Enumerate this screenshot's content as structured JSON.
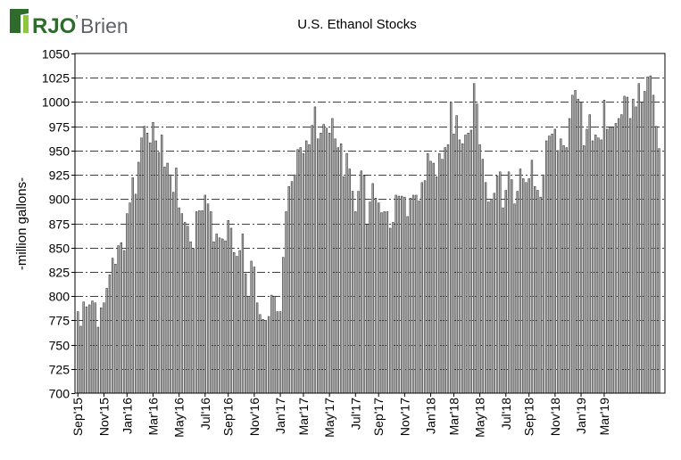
{
  "brand": {
    "name_rjo": "RJO",
    "name_apostrophe": "’",
    "name_brien": "Brien",
    "logo_icon": "rjo-brien-logo-icon",
    "colors": {
      "dark_green": "#2e6b2c",
      "light_green": "#8dc63f",
      "text": "#5f6368"
    }
  },
  "chart_data": {
    "type": "bar",
    "title": "U.S. Ethanol Stocks",
    "ylabel": "-million gallons-",
    "xlabel": "",
    "ylim": [
      700,
      1050
    ],
    "yticks": [
      700,
      725,
      750,
      775,
      800,
      825,
      850,
      875,
      900,
      925,
      950,
      975,
      1000,
      1025,
      1050
    ],
    "grid": "horizontal dash-dot",
    "legend": "none",
    "bar_color": "#a6a6a6",
    "bar_edge_color": "#1a1a1a",
    "frequency": "weekly",
    "start_week": "2015-09-04",
    "x_tick_labels": [
      "Sep'15",
      "Nov'15",
      "Jan'16",
      "Mar'16",
      "May'16",
      "Jul'16",
      "Sep'16",
      "Nov'16",
      "Jan'17",
      "Mar'17",
      "May'17",
      "Jul'17",
      "Sep'17",
      "Nov'17",
      "Jan'18",
      "Mar'18",
      "May'18",
      "Jul'18",
      "Sep'18",
      "Nov'18",
      "Jan'19",
      "Mar'19"
    ],
    "x_tick_weeks": [
      0,
      9,
      17,
      26,
      35,
      44,
      52,
      61,
      70,
      78,
      87,
      96,
      104,
      113,
      122,
      130,
      139,
      148,
      156,
      165,
      174,
      182
    ],
    "values": [
      784,
      769,
      794,
      789,
      791,
      795,
      793,
      768,
      788,
      793,
      808,
      822,
      839,
      833,
      852,
      855,
      847,
      885,
      896,
      922,
      905,
      938,
      963,
      975,
      968,
      958,
      979,
      960,
      948,
      966,
      933,
      937,
      925,
      907,
      932,
      891,
      885,
      876,
      872,
      856,
      849,
      887,
      888,
      888,
      904,
      895,
      887,
      856,
      864,
      860,
      859,
      857,
      878,
      870,
      845,
      841,
      847,
      864,
      823,
      800,
      836,
      830,
      793,
      781,
      776,
      775,
      779,
      801,
      800,
      784,
      784,
      840,
      887,
      913,
      918,
      925,
      951,
      953,
      947,
      960,
      956,
      976,
      995,
      962,
      968,
      977,
      973,
      968,
      983,
      962,
      953,
      957,
      923,
      947,
      931,
      908,
      887,
      908,
      929,
      924,
      874,
      897,
      916,
      901,
      896,
      886,
      887,
      887,
      870,
      876,
      904,
      903,
      903,
      902,
      882,
      901,
      904,
      904,
      898,
      917,
      919,
      947,
      939,
      937,
      923,
      947,
      941,
      953,
      956,
      1000,
      967,
      986,
      961,
      957,
      966,
      968,
      971,
      1019,
      998,
      956,
      941,
      917,
      897,
      900,
      906,
      924,
      928,
      891,
      909,
      928,
      920,
      895,
      908,
      931,
      921,
      917,
      921,
      940,
      913,
      909,
      902,
      925,
      960,
      965,
      967,
      972,
      950,
      962,
      955,
      953,
      983,
      1007,
      1012,
      1003,
      1000,
      955,
      972,
      987,
      960,
      966,
      963,
      961,
      1002,
      972,
      974,
      974,
      978,
      983,
      987,
      1006,
      1005,
      983,
      1003,
      995,
      1019,
      999,
      1011,
      1026,
      1027,
      1007,
      975,
      952
    ]
  }
}
